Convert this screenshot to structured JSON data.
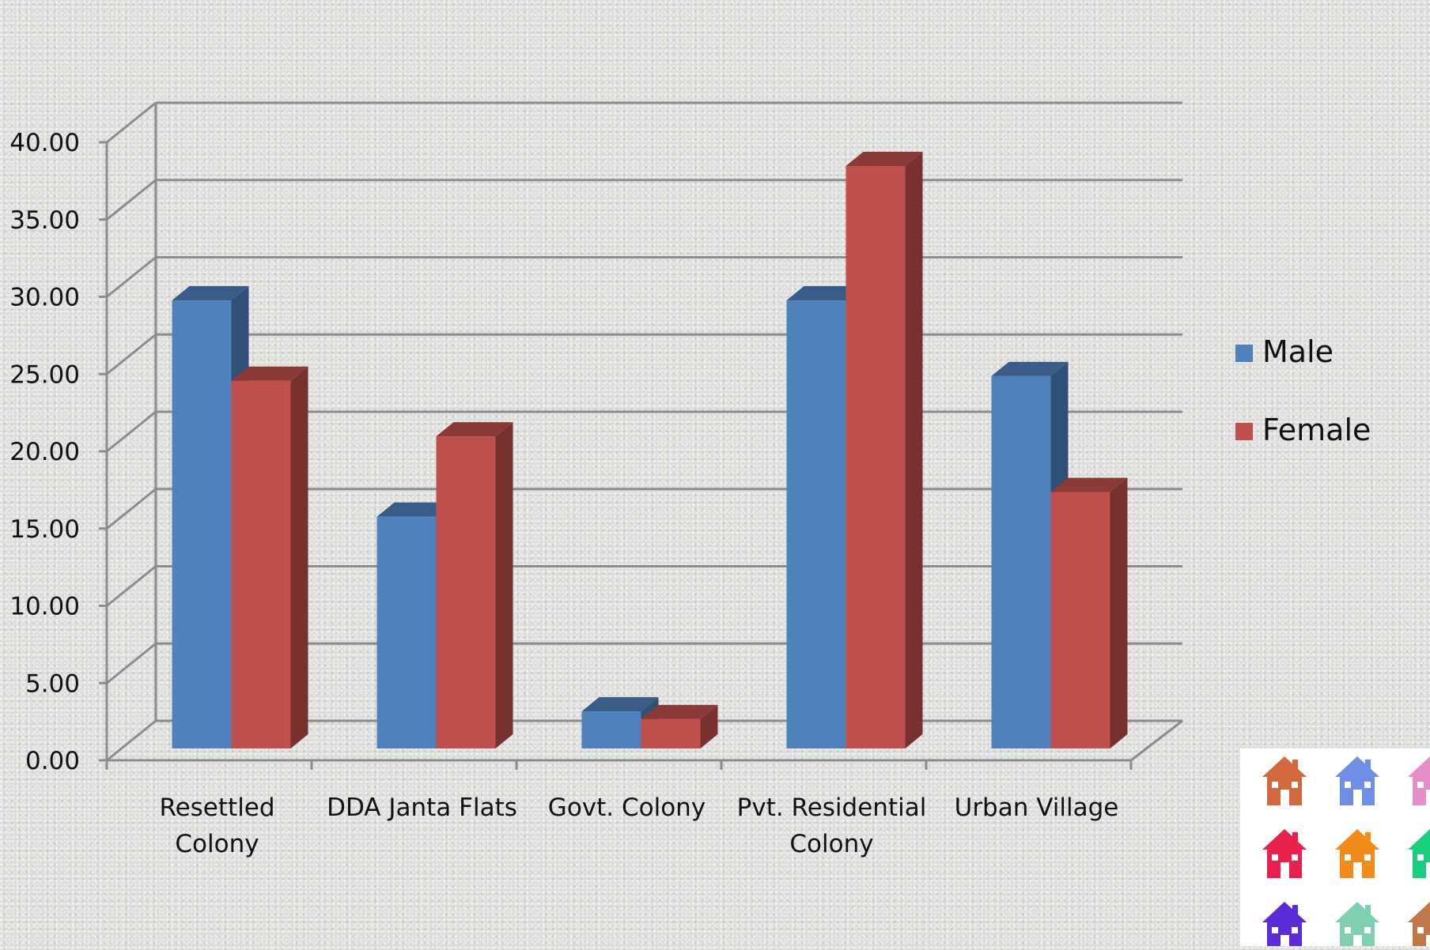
{
  "chart_data": {
    "type": "bar",
    "categories": [
      [
        "Resettled",
        "Colony"
      ],
      [
        "DDA Janta Flats"
      ],
      [
        "Govt. Colony"
      ],
      [
        "Pvt. Residential",
        "Colony"
      ],
      [
        "Urban Village"
      ]
    ],
    "series": [
      {
        "name": "Male",
        "values": [
          29.0,
          15.0,
          2.4,
          29.0,
          24.1
        ],
        "color": "#4f81bd"
      },
      {
        "name": "Female",
        "values": [
          23.8,
          20.2,
          1.9,
          37.7,
          16.6
        ],
        "color": "#c0504d"
      }
    ],
    "yticks": [
      "0.00",
      "5.00",
      "10.00",
      "15.00",
      "20.00",
      "25.00",
      "30.00",
      "35.00",
      "40.00"
    ],
    "ylim": [
      0,
      40
    ],
    "grid": true,
    "legend": "right",
    "style": "3d-clustered-column"
  },
  "decoration": {
    "house_icons": [
      {
        "name": "house-icon",
        "color": "#d2693c"
      },
      {
        "name": "house-icon",
        "color": "#6f8fe6"
      },
      {
        "name": "house-icon",
        "color": "#e58fc6"
      },
      {
        "name": "house-icon",
        "color": "#e8204a"
      },
      {
        "name": "house-icon",
        "color": "#f28b18"
      },
      {
        "name": "house-icon",
        "color": "#19cf7f"
      },
      {
        "name": "house-icon",
        "color": "#5a2bd6"
      },
      {
        "name": "house-icon",
        "color": "#7fcfb0"
      },
      {
        "name": "house-icon",
        "color": "#c07848"
      }
    ]
  }
}
